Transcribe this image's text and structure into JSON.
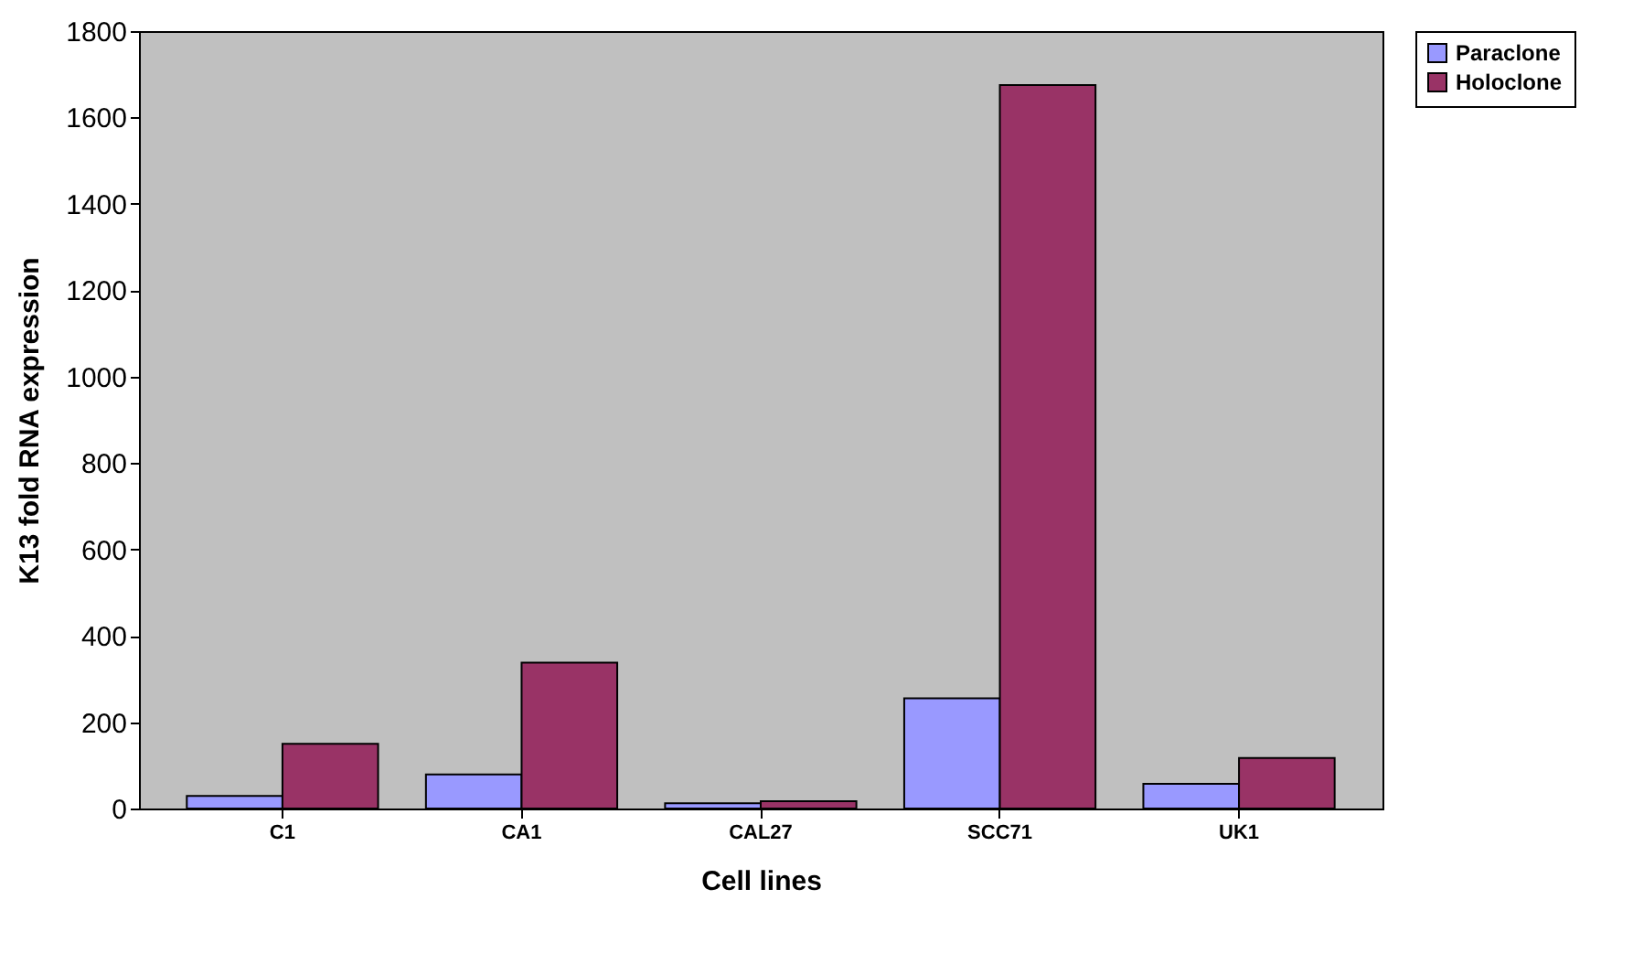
{
  "chart_data": {
    "type": "bar",
    "xlabel": "Cell lines",
    "ylabel": "K13 fold RNA expression",
    "categories": [
      "C1",
      "CA1",
      "CAL27",
      "SCC71",
      "UK1"
    ],
    "series": [
      {
        "name": "Paraclone",
        "color": "#9999ff",
        "values": [
          29,
          79,
          12,
          255,
          57
        ]
      },
      {
        "name": "Holoclone",
        "color": "#993366",
        "values": [
          150,
          338,
          17,
          1675,
          117
        ]
      }
    ],
    "ylim": [
      0,
      1800
    ],
    "yticks": [
      0,
      200,
      400,
      600,
      800,
      1000,
      1200,
      1400,
      1600,
      1800
    ],
    "grid": false,
    "legend": "right"
  }
}
